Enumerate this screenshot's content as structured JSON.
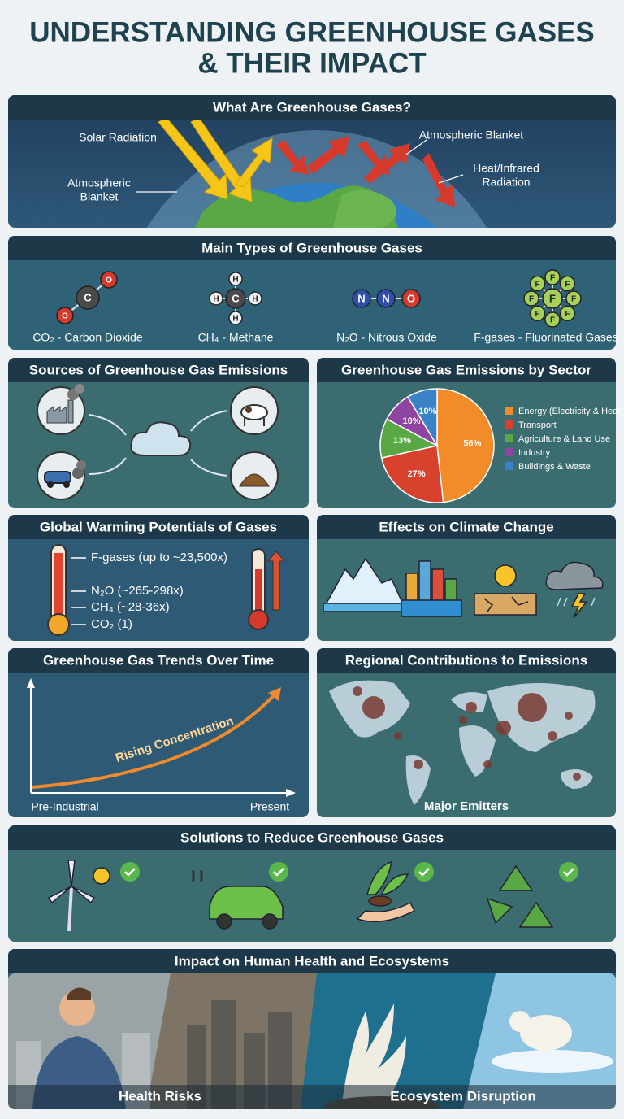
{
  "title_lines": [
    "UNDERSTANDING GREENHOUSE GASES",
    "& THEIR IMPACT"
  ],
  "greenhouse_effect": {
    "heading": "What Are Greenhouse Gases?",
    "solar": "Solar Radiation",
    "blanket_left": [
      "Atmospheric",
      "Blanket"
    ],
    "blanket_right": "Atmospheric Blanket",
    "heat": [
      "Heat/Infrared",
      "Radiation"
    ]
  },
  "gas_types": {
    "heading": "Main Types of Greenhouse Gases",
    "gases": [
      {
        "label": "CO₂ - Carbon Dioxide",
        "atoms": [
          "O",
          "C",
          "O"
        ]
      },
      {
        "label": "CH₄ - Methane",
        "atoms": [
          "C",
          "H",
          "H",
          "H",
          "H"
        ]
      },
      {
        "label": "N₂O - Nitrous Oxide",
        "atoms": [
          "N",
          "N",
          "O"
        ]
      },
      {
        "label": "F-gases - Fluorinated Gases",
        "atoms": [
          "F",
          "F",
          "F",
          "F",
          "F",
          "F",
          "F",
          "F",
          "F"
        ]
      }
    ]
  },
  "sources": {
    "heading": "Sources of Greenhouse Gas Emissions"
  },
  "chart_data": {
    "type": "pie",
    "title": "Greenhouse Gas Emissions by Sector",
    "categories": [
      "Energy (Electricity & Heat)",
      "Transport",
      "Agriculture & Land Use",
      "Industry",
      "Buildings & Waste"
    ],
    "values": [
      56,
      27,
      13,
      10,
      10
    ],
    "value_labels": [
      "56%",
      "27%",
      "13%",
      "10%",
      "10%"
    ],
    "colors": [
      "#f28c28",
      "#d9412f",
      "#5aa845",
      "#8e44a0",
      "#3a82c8"
    ]
  },
  "gwp": {
    "heading": "Global Warming Potentials of Gases",
    "labels": [
      "F-gases (up to ~23,500x)",
      "N₂O (~265-298x)",
      "CH₄ (~28-36x)",
      "CO₂ (1)"
    ]
  },
  "effects": {
    "heading": "Effects on Climate Change"
  },
  "trends": {
    "heading": "Greenhouse Gas Trends Over Time",
    "curve_label": "Rising Concentration",
    "x_start": "Pre-Industrial",
    "x_end": "Present"
  },
  "regional": {
    "heading": "Regional Contributions to Emissions",
    "caption": "Major Emitters"
  },
  "solutions": {
    "heading": "Solutions to Reduce Greenhouse Gases"
  },
  "impact": {
    "heading": "Impact on Human Health and Ecosystems",
    "captions": [
      "Health Risks",
      "Ecosystem Disruption"
    ]
  }
}
